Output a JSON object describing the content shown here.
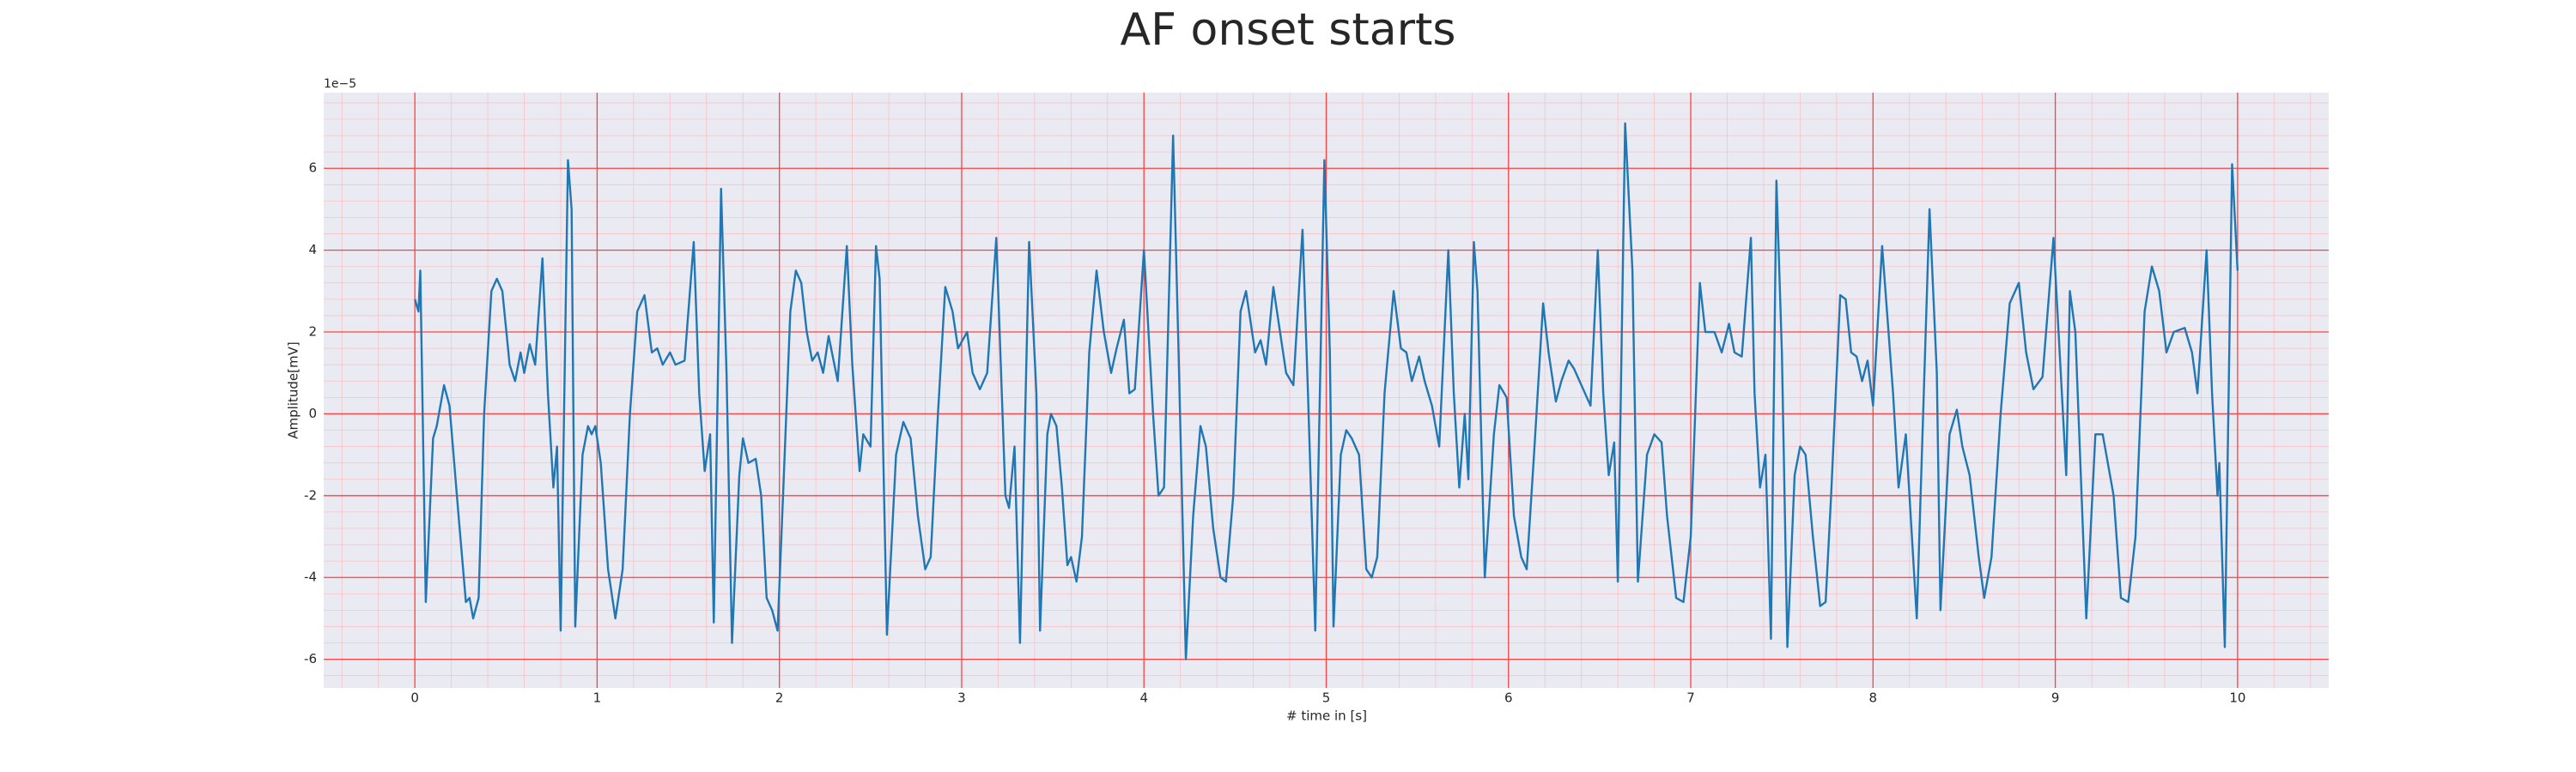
{
  "chart_data": {
    "type": "line",
    "title": "AF onset starts",
    "xlabel": "# time in [s]",
    "ylabel": "Amplitude[mV]",
    "y_offset_label": "1e−5",
    "color": "#1f77b4",
    "background": "#eaeaf2",
    "grid": true,
    "grid_color": "#ff4040",
    "minor_grid": true,
    "xlim": [
      -0.5,
      10.5
    ],
    "ylim": [
      -6.7,
      7.85
    ],
    "xticks": [
      0,
      1,
      2,
      3,
      4,
      5,
      6,
      7,
      8,
      9,
      10
    ],
    "yticks": [
      -6,
      -4,
      -2,
      0,
      2,
      4,
      6
    ],
    "x": [
      0.0,
      0.02,
      0.03,
      0.06,
      0.1,
      0.12,
      0.16,
      0.19,
      0.24,
      0.28,
      0.3,
      0.32,
      0.35,
      0.38,
      0.42,
      0.45,
      0.48,
      0.52,
      0.55,
      0.58,
      0.6,
      0.63,
      0.66,
      0.7,
      0.73,
      0.76,
      0.78,
      0.8,
      0.84,
      0.86,
      0.88,
      0.92,
      0.95,
      0.97,
      0.99,
      1.02,
      1.06,
      1.1,
      1.14,
      1.18,
      1.22,
      1.26,
      1.3,
      1.33,
      1.36,
      1.4,
      1.43,
      1.48,
      1.53,
      1.56,
      1.59,
      1.62,
      1.64,
      1.68,
      1.71,
      1.74,
      1.78,
      1.8,
      1.83,
      1.87,
      1.9,
      1.93,
      1.96,
      1.99,
      2.02,
      2.06,
      2.09,
      2.12,
      2.15,
      2.18,
      2.21,
      2.24,
      2.27,
      2.32,
      2.37,
      2.4,
      2.44,
      2.46,
      2.5,
      2.53,
      2.55,
      2.59,
      2.64,
      2.68,
      2.72,
      2.76,
      2.8,
      2.83,
      2.87,
      2.91,
      2.95,
      2.98,
      3.03,
      3.06,
      3.1,
      3.14,
      3.19,
      3.24,
      3.26,
      3.29,
      3.32,
      3.37,
      3.41,
      3.43,
      3.47,
      3.49,
      3.52,
      3.55,
      3.58,
      3.6,
      3.63,
      3.66,
      3.7,
      3.74,
      3.78,
      3.82,
      3.85,
      3.89,
      3.92,
      3.95,
      4.0,
      4.05,
      4.08,
      4.11,
      4.16,
      4.19,
      4.23,
      4.27,
      4.31,
      4.34,
      4.38,
      4.42,
      4.45,
      4.49,
      4.53,
      4.56,
      4.61,
      4.64,
      4.67,
      4.71,
      4.74,
      4.78,
      4.82,
      4.87,
      4.9,
      4.94,
      4.99,
      5.02,
      5.04,
      5.08,
      5.11,
      5.14,
      5.18,
      5.22,
      5.25,
      5.28,
      5.32,
      5.37,
      5.41,
      5.44,
      5.47,
      5.51,
      5.54,
      5.58,
      5.62,
      5.67,
      5.7,
      5.73,
      5.76,
      5.78,
      5.81,
      5.83,
      5.87,
      5.92,
      5.95,
      5.99,
      6.03,
      6.07,
      6.1,
      6.14,
      6.19,
      6.22,
      6.26,
      6.29,
      6.33,
      6.36,
      6.41,
      6.45,
      6.49,
      6.52,
      6.55,
      6.58,
      6.6,
      6.64,
      6.68,
      6.71,
      6.76,
      6.8,
      6.84,
      6.87,
      6.92,
      6.96,
      7.0,
      7.05,
      7.08,
      7.13,
      7.17,
      7.21,
      7.24,
      7.28,
      7.33,
      7.35,
      7.38,
      7.41,
      7.44,
      7.47,
      7.5,
      7.53,
      7.57,
      7.6,
      7.63,
      7.67,
      7.71,
      7.74,
      7.77,
      7.82,
      7.85,
      7.88,
      7.91,
      7.94,
      7.97,
      8.0,
      8.05,
      8.11,
      8.14,
      8.18,
      8.24,
      8.31,
      8.35,
      8.37,
      8.42,
      8.46,
      8.49,
      8.53,
      8.58,
      8.61,
      8.65,
      8.7,
      8.75,
      8.8,
      8.84,
      8.88,
      8.93,
      8.99,
      9.03,
      9.06,
      9.08,
      9.11,
      9.17,
      9.22,
      9.26,
      9.32,
      9.36,
      9.4,
      9.44,
      9.49,
      9.53,
      9.57,
      9.61,
      9.65,
      9.71,
      9.75,
      9.78,
      9.83,
      9.86,
      9.89,
      9.9,
      9.93,
      9.97,
      10.0
    ],
    "values": [
      2.8,
      2.5,
      3.5,
      -4.6,
      -0.6,
      -0.3,
      0.7,
      0.2,
      -2.5,
      -4.6,
      -4.5,
      -5.0,
      -4.5,
      0,
      3.0,
      3.3,
      3.0,
      1.2,
      0.8,
      1.5,
      1.0,
      1.7,
      1.2,
      3.8,
      0.5,
      -1.8,
      -0.8,
      -5.3,
      6.2,
      5.0,
      -5.2,
      -1.0,
      -0.3,
      -0.5,
      -0.3,
      -1.2,
      -3.8,
      -5.0,
      -3.8,
      0,
      2.5,
      2.9,
      1.5,
      1.6,
      1.2,
      1.5,
      1.2,
      1.3,
      4.2,
      0.5,
      -1.4,
      -0.5,
      -5.1,
      5.5,
      1.0,
      -5.6,
      -1.5,
      -0.6,
      -1.2,
      -1.1,
      -2.0,
      -4.5,
      -4.8,
      -5.3,
      -2.0,
      2.5,
      3.5,
      3.2,
      2.0,
      1.3,
      1.5,
      1.0,
      1.9,
      0.8,
      4.1,
      1.2,
      -1.4,
      -0.5,
      -0.8,
      4.1,
      3.3,
      -5.4,
      -1.0,
      -0.2,
      -0.6,
      -2.5,
      -3.8,
      -3.5,
      0,
      3.1,
      2.5,
      1.6,
      2.0,
      1.0,
      0.6,
      1.0,
      4.3,
      -2.0,
      -2.3,
      -0.8,
      -5.6,
      4.2,
      0.5,
      -5.3,
      -0.5,
      0,
      -0.3,
      -1.8,
      -3.7,
      -3.5,
      -4.1,
      -3.0,
      1.5,
      3.5,
      2.0,
      1.0,
      1.6,
      2.3,
      0.5,
      0.6,
      4.0,
      0,
      -2.0,
      -1.8,
      6.8,
      1.5,
      -6.0,
      -2.5,
      -0.3,
      -0.8,
      -2.8,
      -4.0,
      -4.1,
      -2.0,
      2.5,
      3.0,
      1.5,
      1.8,
      1.2,
      3.1,
      2.2,
      1.0,
      0.7,
      4.5,
      0.5,
      -5.3,
      6.2,
      1.5,
      -5.2,
      -1.0,
      -0.4,
      -0.6,
      -1.0,
      -3.8,
      -4.0,
      -3.5,
      0.5,
      3.0,
      1.6,
      1.5,
      0.8,
      1.4,
      0.8,
      0.2,
      -0.8,
      4.0,
      0.5,
      -1.8,
      0,
      -1.6,
      4.2,
      3.0,
      -4.0,
      -0.5,
      0.7,
      0.4,
      -2.5,
      -3.5,
      -3.8,
      -1.0,
      2.7,
      1.5,
      0.3,
      0.8,
      1.3,
      1.1,
      0.6,
      0.2,
      4.0,
      0.5,
      -1.5,
      -0.7,
      -4.1,
      7.1,
      3.5,
      -4.1,
      -1.0,
      -0.5,
      -0.7,
      -2.5,
      -4.5,
      -4.6,
      -3.0,
      3.2,
      2.0,
      2.0,
      1.5,
      2.2,
      1.5,
      1.4,
      4.3,
      0.5,
      -1.8,
      -1.0,
      -5.5,
      5.7,
      1.5,
      -5.7,
      -1.5,
      -0.8,
      -1.0,
      -3.0,
      -4.7,
      -4.6,
      -2.0,
      2.9,
      2.8,
      1.5,
      1.4,
      0.8,
      1.3,
      0.2,
      4.1,
      0.5,
      -1.8,
      -0.5,
      -5.0,
      5.0,
      1.0,
      -4.8,
      -0.5,
      0.1,
      -0.8,
      -1.5,
      -3.5,
      -4.5,
      -3.5,
      0,
      2.7,
      3.2,
      1.5,
      0.6,
      0.9,
      4.3,
      1.0,
      -1.5,
      3.0,
      2.0,
      -5.0,
      -0.5,
      -0.5,
      -2.0,
      -4.5,
      -4.6,
      -3.0,
      2.5,
      3.6,
      3.0,
      1.5,
      2.0,
      2.1,
      1.5,
      0.5,
      4.0,
      0.5,
      -2.0,
      -1.2,
      -5.7,
      6.1,
      3.5
    ]
  }
}
